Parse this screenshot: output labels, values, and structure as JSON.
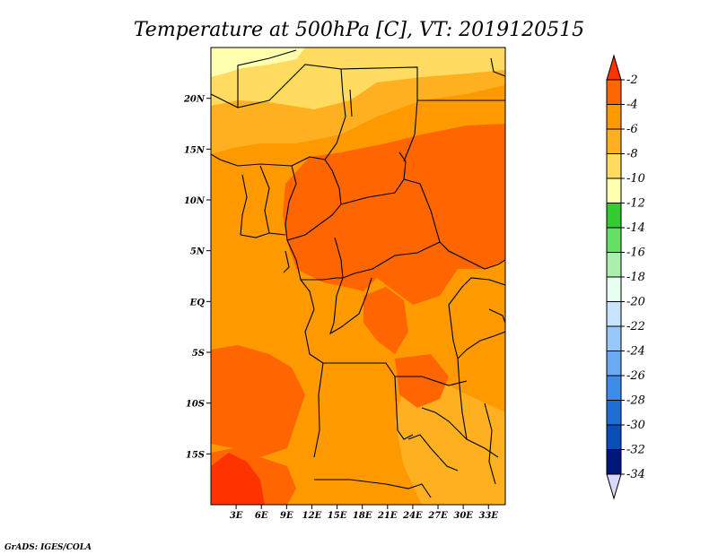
{
  "title": "Temperature at 500hPa [C], VT: 2019120515",
  "credit": "GrADS: IGES/COLA",
  "map": {
    "lon_labels": [
      "3E",
      "6E",
      "9E",
      "12E",
      "15E",
      "18E",
      "21E",
      "24E",
      "27E",
      "30E",
      "33E"
    ],
    "lat_labels": [
      "20N",
      "15N",
      "10N",
      "5N",
      "EQ",
      "5S",
      "10S",
      "15S"
    ],
    "lon_range": [
      0,
      35
    ],
    "lat_range": [
      -20,
      25
    ]
  },
  "colorbar": {
    "labels": [
      "-2",
      "-4",
      "-6",
      "-8",
      "-10",
      "-12",
      "-14",
      "-16",
      "-18",
      "-20",
      "-22",
      "-24",
      "-26",
      "-28",
      "-30",
      "-32",
      "-34"
    ],
    "colors": [
      "#ff3300",
      "#ff6600",
      "#ff9900",
      "#ffb020",
      "#ffdc60",
      "#ffffb0",
      "#33cc33",
      "#66e066",
      "#aaf0aa",
      "#e6fff0",
      "#c8e4ff",
      "#96c8f8",
      "#6aaaf2",
      "#3c8ce8",
      "#1e6ed6",
      "#0a4eb8",
      "#00167a",
      "#d8d8f8"
    ]
  },
  "levels": {
    "hottest": "#ff3300",
    "hot": "#ff6600",
    "warm": "#ff9900",
    "mild": "#ffb020",
    "cool": "#ffdc60",
    "cold": "#ffffb0"
  }
}
